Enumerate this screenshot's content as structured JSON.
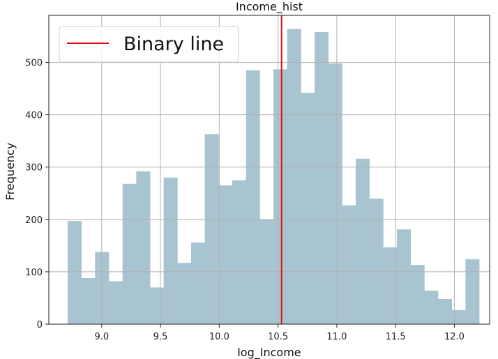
{
  "chart_data": {
    "type": "bar",
    "title": "Income_hist",
    "xlabel": "log_Income",
    "ylabel": "Frequency",
    "xlim": [
      8.55,
      12.3
    ],
    "ylim": [
      0,
      590
    ],
    "xticks": [
      "9.0",
      "9.5",
      "10.0",
      "10.5",
      "11.0",
      "11.5",
      "12.0"
    ],
    "yticks": [
      "0",
      "100",
      "200",
      "300",
      "400",
      "500"
    ],
    "grid": true,
    "bar_color": "#a9c4d1",
    "bins": {
      "start": 8.71,
      "width": 0.1167,
      "counts": [
        197,
        88,
        138,
        82,
        268,
        292,
        70,
        280,
        117,
        156,
        363,
        265,
        275,
        485,
        200,
        487,
        564,
        442,
        558,
        498,
        227,
        316,
        240,
        147,
        181,
        113,
        64,
        48,
        27,
        124
      ]
    },
    "reference_line": {
      "x": 10.53,
      "color": "#dd1111"
    },
    "legend": {
      "position": "top-left",
      "entries": [
        {
          "label": "Binary line",
          "color": "#dd1111"
        }
      ]
    }
  }
}
